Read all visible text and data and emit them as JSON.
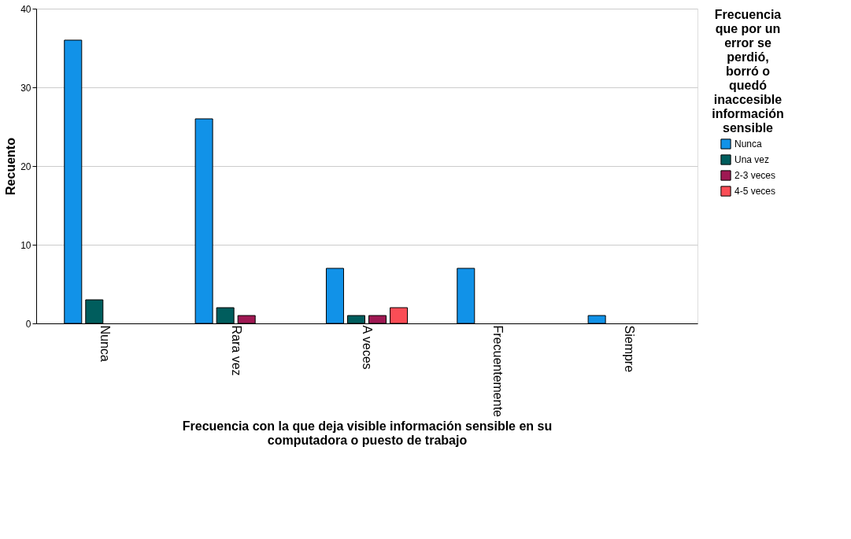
{
  "chart_data": {
    "type": "bar",
    "categories": [
      "Nunca",
      "Rara vez",
      "A veces",
      "Frecuentemente",
      "Siempre"
    ],
    "series": [
      {
        "name": "Nunca",
        "color": "#1192e8",
        "values": [
          36,
          26,
          7,
          7,
          1
        ]
      },
      {
        "name": "Una vez",
        "color": "#005d5d",
        "values": [
          3,
          2,
          1,
          null,
          null
        ]
      },
      {
        "name": "2-3 veces",
        "color": "#9f1853",
        "values": [
          null,
          1,
          1,
          null,
          null
        ]
      },
      {
        "name": "4-5 veces",
        "color": "#fa4d56",
        "values": [
          null,
          null,
          2,
          null,
          null
        ]
      }
    ],
    "xlabel": "Frecuencia con la que deja visible información sensible en su computadora o puesto de trabajo",
    "ylabel": "Recuento",
    "legend_title": "Frecuencia que por un error se perdió, borró o quedó inaccesible información sensible",
    "ylim": [
      0,
      40
    ],
    "yticks": [
      0,
      10,
      20,
      30,
      40
    ],
    "grid": "y",
    "legend": "right"
  }
}
